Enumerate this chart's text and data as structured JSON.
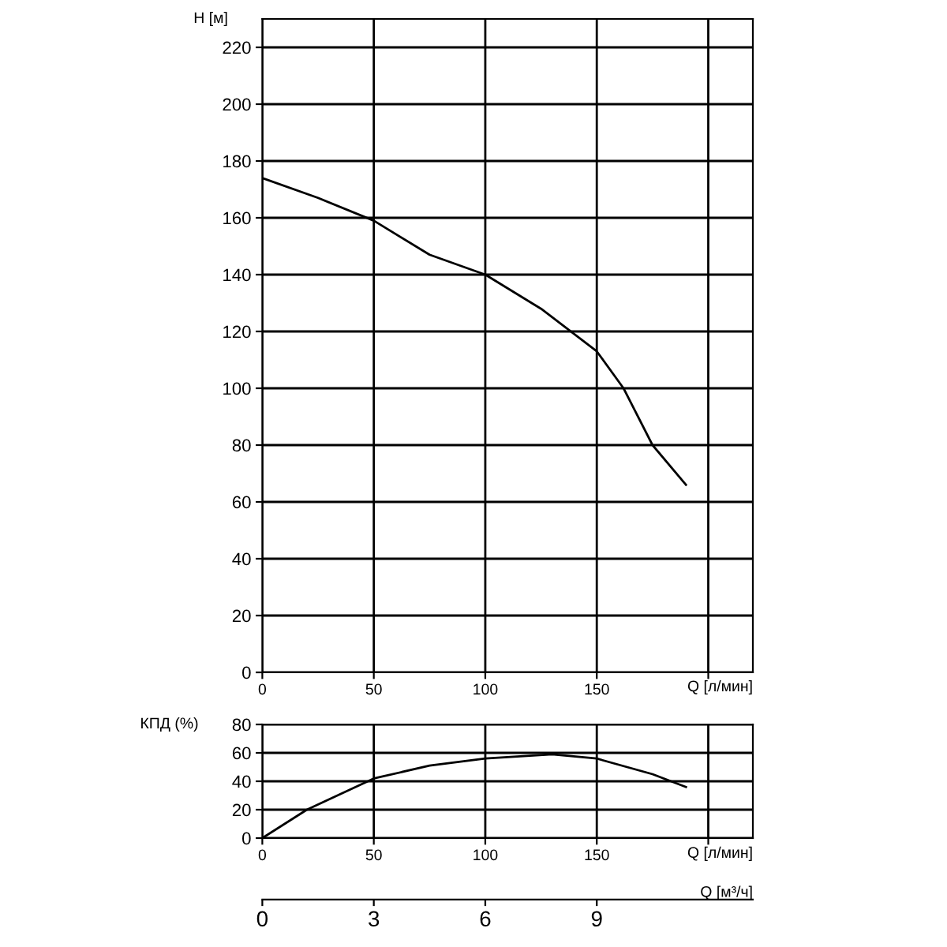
{
  "chart_data": [
    {
      "type": "line",
      "ylabel": "Н [м]",
      "xlabel": "Q [л/мин]",
      "series": [
        {
          "color": "#000000",
          "x": [
            0,
            25,
            50,
            75,
            100,
            125,
            150,
            162,
            175,
            190
          ],
          "values": [
            174,
            167,
            159,
            147,
            140,
            128,
            113,
            100,
            80,
            66
          ]
        }
      ],
      "xlim": [
        0,
        220
      ],
      "xticks": [
        0,
        50,
        100,
        150,
        {
          "value": 200,
          "label": null
        }
      ],
      "ylim": [
        0,
        230
      ],
      "yticks": [
        0,
        20,
        40,
        60,
        80,
        100,
        120,
        140,
        160,
        180,
        200,
        220
      ],
      "grid": true,
      "marker": "none",
      "line_style": "solid"
    },
    {
      "type": "line",
      "ylabel": "КПД (%)",
      "xlabel": "Q [л/мин]",
      "x2label": "Q [м³/ч]",
      "series": [
        {
          "color": "#000000",
          "x": [
            0,
            20,
            50,
            75,
            100,
            130,
            150,
            175,
            190
          ],
          "values": [
            0,
            20,
            42,
            51,
            56,
            59,
            56,
            45,
            36
          ]
        }
      ],
      "xlim": [
        0,
        220
      ],
      "xticks": [
        0,
        50,
        100,
        150,
        {
          "value": 200,
          "label": null
        }
      ],
      "ylim": [
        0,
        80
      ],
      "yticks": [
        0,
        20,
        40,
        60,
        80
      ],
      "x2lim": [
        0,
        13.2
      ],
      "x2ticks": [
        0,
        3,
        6,
        9
      ],
      "grid": true,
      "marker": "none",
      "line_style": "solid"
    }
  ]
}
